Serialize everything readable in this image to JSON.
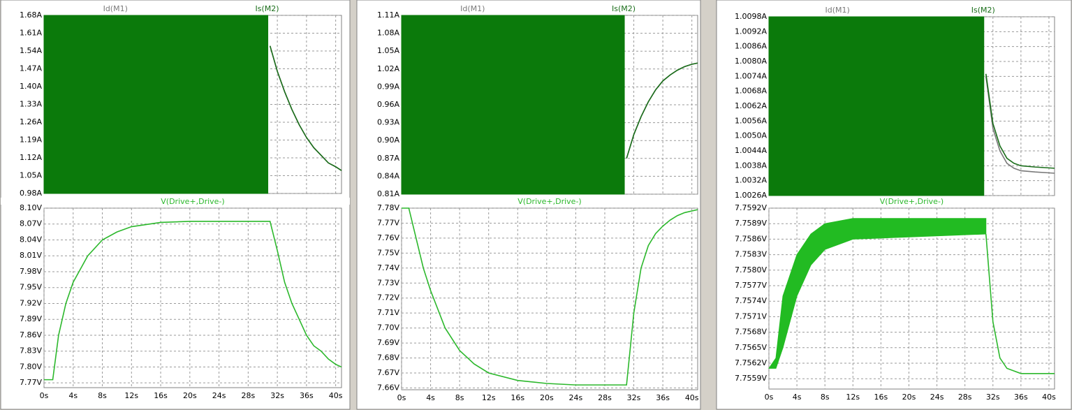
{
  "chart_data": [
    {
      "type": "line",
      "xlim": [
        0,
        40.8
      ],
      "ylim": [
        0.98,
        1.68
      ],
      "yticks": [
        {
          "value": 0.98,
          "label": "0.98A"
        },
        {
          "value": 1.05,
          "label": "1.05A"
        },
        {
          "value": 1.12,
          "label": "1.12A"
        },
        {
          "value": 1.19,
          "label": "1.19A"
        },
        {
          "value": 1.26,
          "label": "1.26A"
        },
        {
          "value": 1.33,
          "label": "1.33A"
        },
        {
          "value": 1.4,
          "label": "1.40A"
        },
        {
          "value": 1.47,
          "label": "1.47A"
        },
        {
          "value": 1.54,
          "label": "1.54A"
        },
        {
          "value": 1.61,
          "label": "1.61A"
        },
        {
          "value": 1.68,
          "label": "1.68A"
        }
      ],
      "band": {
        "color": "#0b7a0b",
        "x": [
          0,
          30.7
        ],
        "low": [
          0.98,
          0.98
        ],
        "high": [
          1.68,
          1.68
        ]
      },
      "series": [
        {
          "name": "Id(M1)",
          "color": "#7a7a7a",
          "x": [
            31,
            32,
            33,
            34,
            35,
            36,
            37,
            38,
            39,
            40,
            40.8
          ],
          "values": [
            1.56,
            1.46,
            1.38,
            1.31,
            1.25,
            1.2,
            1.16,
            1.13,
            1.1,
            1.085,
            1.07
          ]
        },
        {
          "name": "Is(M2)",
          "color": "#1a6e1a",
          "x": [
            31,
            32,
            33,
            34,
            35,
            36,
            37,
            38,
            39,
            40,
            40.8
          ],
          "values": [
            1.56,
            1.46,
            1.38,
            1.31,
            1.25,
            1.2,
            1.16,
            1.13,
            1.1,
            1.085,
            1.07
          ]
        }
      ]
    },
    {
      "type": "line",
      "xlim": [
        0,
        40.8
      ],
      "ylim": [
        7.761,
        8.1
      ],
      "xticks": [
        {
          "value": 0,
          "label": "0s"
        },
        {
          "value": 4,
          "label": "4s"
        },
        {
          "value": 8,
          "label": "8s"
        },
        {
          "value": 12,
          "label": "12s"
        },
        {
          "value": 16,
          "label": "16s"
        },
        {
          "value": 20,
          "label": "20s"
        },
        {
          "value": 24,
          "label": "24s"
        },
        {
          "value": 28,
          "label": "28s"
        },
        {
          "value": 32,
          "label": "32s"
        },
        {
          "value": 36,
          "label": "36s"
        },
        {
          "value": 40,
          "label": "40s"
        }
      ],
      "yticks": [
        {
          "value": 7.77,
          "label": "7.77V"
        },
        {
          "value": 7.8,
          "label": "7.80V"
        },
        {
          "value": 7.83,
          "label": "7.83V"
        },
        {
          "value": 7.86,
          "label": "7.86V"
        },
        {
          "value": 7.89,
          "label": "7.89V"
        },
        {
          "value": 7.92,
          "label": "7.92V"
        },
        {
          "value": 7.95,
          "label": "7.95V"
        },
        {
          "value": 7.98,
          "label": "7.98V"
        },
        {
          "value": 8.01,
          "label": "8.01V"
        },
        {
          "value": 8.04,
          "label": "8.04V"
        },
        {
          "value": 8.07,
          "label": "8.07V"
        },
        {
          "value": 8.1,
          "label": "8.10V"
        }
      ],
      "series": [
        {
          "name": "V(Drive+,Drive-)",
          "color": "#2cb82c",
          "x": [
            0,
            1.2,
            2,
            3,
            4,
            6,
            8,
            10,
            12,
            16,
            20,
            31,
            32,
            33,
            34,
            35,
            36,
            37,
            38,
            39,
            40,
            40.8
          ],
          "values": [
            7.776,
            7.776,
            7.86,
            7.92,
            7.96,
            8.01,
            8.04,
            8.055,
            8.065,
            8.073,
            8.075,
            8.075,
            8.02,
            7.96,
            7.92,
            7.89,
            7.86,
            7.84,
            7.83,
            7.815,
            7.805,
            7.8
          ]
        }
      ]
    },
    {
      "type": "line",
      "xlim": [
        0,
        40.8
      ],
      "ylim": [
        0.81,
        1.11
      ],
      "yticks": [
        {
          "value": 0.81,
          "label": "0.81A"
        },
        {
          "value": 0.84,
          "label": "0.84A"
        },
        {
          "value": 0.87,
          "label": "0.87A"
        },
        {
          "value": 0.9,
          "label": "0.90A"
        },
        {
          "value": 0.93,
          "label": "0.93A"
        },
        {
          "value": 0.96,
          "label": "0.96A"
        },
        {
          "value": 0.99,
          "label": "0.99A"
        },
        {
          "value": 1.02,
          "label": "1.02A"
        },
        {
          "value": 1.05,
          "label": "1.05A"
        },
        {
          "value": 1.08,
          "label": "1.08A"
        },
        {
          "value": 1.11,
          "label": "1.11A"
        }
      ],
      "band": {
        "color": "#0b7a0b",
        "x": [
          0,
          30.7
        ],
        "low": [
          0.81,
          0.81
        ],
        "high": [
          1.11,
          1.11
        ]
      },
      "series": [
        {
          "name": "Id(M1)",
          "color": "#7a7a7a",
          "x": [
            31,
            32,
            33,
            34,
            35,
            36,
            37,
            38,
            39,
            40,
            40.8
          ],
          "values": [
            0.87,
            0.91,
            0.94,
            0.965,
            0.985,
            1.0,
            1.01,
            1.018,
            1.024,
            1.028,
            1.03
          ]
        },
        {
          "name": "Is(M2)",
          "color": "#1a6e1a",
          "x": [
            31,
            32,
            33,
            34,
            35,
            36,
            37,
            38,
            39,
            40,
            40.8
          ],
          "values": [
            0.87,
            0.91,
            0.94,
            0.965,
            0.985,
            1.0,
            1.01,
            1.018,
            1.024,
            1.028,
            1.03
          ]
        }
      ]
    },
    {
      "type": "line",
      "xlim": [
        0,
        40.8
      ],
      "ylim": [
        7.6588,
        7.78
      ],
      "xticks": [
        {
          "value": 0,
          "label": "0s"
        },
        {
          "value": 4,
          "label": "4s"
        },
        {
          "value": 8,
          "label": "8s"
        },
        {
          "value": 12,
          "label": "12s"
        },
        {
          "value": 16,
          "label": "16s"
        },
        {
          "value": 20,
          "label": "20s"
        },
        {
          "value": 24,
          "label": "24s"
        },
        {
          "value": 28,
          "label": "28s"
        },
        {
          "value": 32,
          "label": "32s"
        },
        {
          "value": 36,
          "label": "36s"
        },
        {
          "value": 40,
          "label": "40s"
        }
      ],
      "yticks": [
        {
          "value": 7.66,
          "label": "7.66V"
        },
        {
          "value": 7.67,
          "label": "7.67V"
        },
        {
          "value": 7.68,
          "label": "7.68V"
        },
        {
          "value": 7.69,
          "label": "7.69V"
        },
        {
          "value": 7.7,
          "label": "7.70V"
        },
        {
          "value": 7.71,
          "label": "7.71V"
        },
        {
          "value": 7.72,
          "label": "7.72V"
        },
        {
          "value": 7.73,
          "label": "7.73V"
        },
        {
          "value": 7.74,
          "label": "7.74V"
        },
        {
          "value": 7.75,
          "label": "7.75V"
        },
        {
          "value": 7.76,
          "label": "7.76V"
        },
        {
          "value": 7.77,
          "label": "7.77V"
        },
        {
          "value": 7.78,
          "label": "7.78V"
        }
      ],
      "series": [
        {
          "name": "V(Drive+,Drive-)",
          "color": "#2cb82c",
          "x": [
            0,
            1,
            2,
            3,
            4,
            6,
            8,
            10,
            12,
            16,
            20,
            24,
            31,
            32,
            33,
            34,
            35,
            36,
            37,
            38,
            39,
            40.8
          ],
          "values": [
            7.78,
            7.78,
            7.76,
            7.74,
            7.725,
            7.7,
            7.685,
            7.676,
            7.67,
            7.665,
            7.663,
            7.662,
            7.662,
            7.71,
            7.74,
            7.755,
            7.763,
            7.768,
            7.772,
            7.775,
            7.777,
            7.779
          ]
        }
      ]
    },
    {
      "type": "line",
      "xlim": [
        0,
        40.8
      ],
      "ylim": [
        1.0026,
        1.0098
      ],
      "yticks": [
        {
          "value": 1.0026,
          "label": "1.0026A"
        },
        {
          "value": 1.0032,
          "label": "1.0032A"
        },
        {
          "value": 1.0038,
          "label": "1.0038A"
        },
        {
          "value": 1.0044,
          "label": "1.0044A"
        },
        {
          "value": 1.005,
          "label": "1.0050A"
        },
        {
          "value": 1.0056,
          "label": "1.0056A"
        },
        {
          "value": 1.0062,
          "label": "1.0062A"
        },
        {
          "value": 1.0068,
          "label": "1.0068A"
        },
        {
          "value": 1.0074,
          "label": "1.0074A"
        },
        {
          "value": 1.008,
          "label": "1.0080A"
        },
        {
          "value": 1.0086,
          "label": "1.0086A"
        },
        {
          "value": 1.0092,
          "label": "1.0092A"
        },
        {
          "value": 1.0098,
          "label": "1.0098A"
        }
      ],
      "band": {
        "color": "#0b7a0b",
        "x": [
          0,
          30.7
        ],
        "low": [
          1.0026,
          1.0026
        ],
        "high": [
          1.0098,
          1.0098
        ]
      },
      "series": [
        {
          "name": "Id(M1)",
          "color": "#7a7a7a",
          "x": [
            31,
            32,
            33,
            34,
            35,
            36,
            38,
            40.8
          ],
          "values": [
            1.0074,
            1.0053,
            1.0044,
            1.0039,
            1.0037,
            1.0036,
            1.00355,
            1.0035
          ]
        },
        {
          "name": "Is(M2)",
          "color": "#1a6e1a",
          "x": [
            31,
            32,
            33,
            34,
            35,
            36,
            38,
            40.8
          ],
          "values": [
            1.0075,
            1.0055,
            1.0046,
            1.0041,
            1.0039,
            1.0038,
            1.00375,
            1.0037
          ]
        }
      ]
    },
    {
      "type": "line",
      "xlim": [
        0,
        40.8
      ],
      "ylim": [
        7.7557,
        7.7592
      ],
      "xticks": [
        {
          "value": 0,
          "label": "0s"
        },
        {
          "value": 4,
          "label": "4s"
        },
        {
          "value": 8,
          "label": "8s"
        },
        {
          "value": 12,
          "label": "12s"
        },
        {
          "value": 16,
          "label": "16s"
        },
        {
          "value": 20,
          "label": "20s"
        },
        {
          "value": 24,
          "label": "24s"
        },
        {
          "value": 28,
          "label": "28s"
        },
        {
          "value": 32,
          "label": "32s"
        },
        {
          "value": 36,
          "label": "36s"
        },
        {
          "value": 40,
          "label": "40s"
        }
      ],
      "yticks": [
        {
          "value": 7.7559,
          "label": "7.7559V"
        },
        {
          "value": 7.7562,
          "label": "7.7562V"
        },
        {
          "value": 7.7565,
          "label": "7.7565V"
        },
        {
          "value": 7.7568,
          "label": "7.7568V"
        },
        {
          "value": 7.7571,
          "label": "7.7571V"
        },
        {
          "value": 7.7574,
          "label": "7.7574V"
        },
        {
          "value": 7.7577,
          "label": "7.7577V"
        },
        {
          "value": 7.758,
          "label": "7.7580V"
        },
        {
          "value": 7.7583,
          "label": "7.7583V"
        },
        {
          "value": 7.7586,
          "label": "7.7586V"
        },
        {
          "value": 7.7589,
          "label": "7.7589V"
        },
        {
          "value": 7.7592,
          "label": "7.7592V"
        }
      ],
      "band": {
        "color": "#22bb22",
        "x": [
          0,
          1,
          2,
          4,
          6,
          8,
          12,
          31
        ],
        "low": [
          7.7561,
          7.7561,
          7.7565,
          7.7575,
          7.7581,
          7.7584,
          7.7586,
          7.7587
        ],
        "high": [
          7.7561,
          7.7563,
          7.7575,
          7.7583,
          7.7587,
          7.7589,
          7.759,
          7.759
        ]
      },
      "series": [
        {
          "name": "V(Drive+,Drive-)",
          "color": "#2cb82c",
          "x": [
            31,
            32,
            33,
            34,
            36,
            40.8
          ],
          "values": [
            7.7587,
            7.757,
            7.7563,
            7.7561,
            7.756,
            7.756
          ]
        }
      ]
    }
  ]
}
